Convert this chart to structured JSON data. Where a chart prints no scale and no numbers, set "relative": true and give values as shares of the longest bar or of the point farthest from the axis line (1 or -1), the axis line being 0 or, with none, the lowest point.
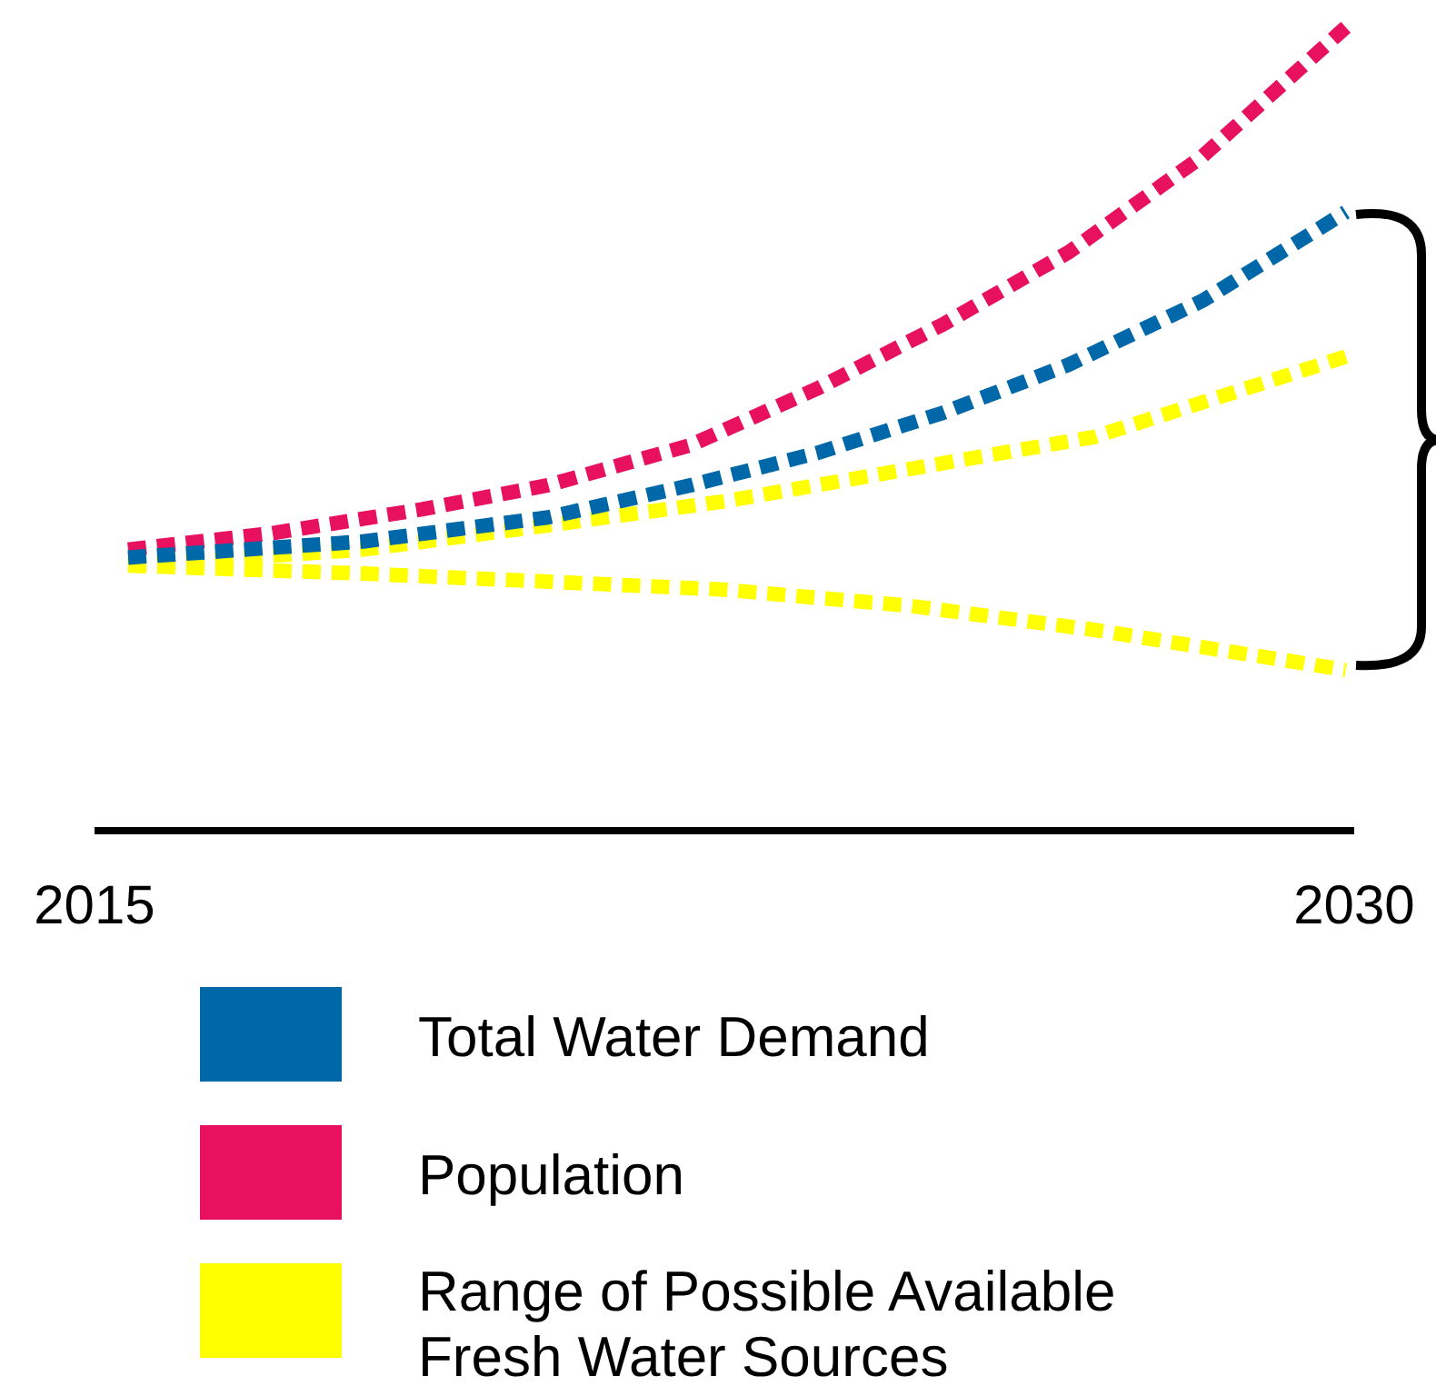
{
  "chart_data": {
    "type": "line",
    "relative": true,
    "xlim": [
      2015,
      2030
    ],
    "xticks": [
      2015,
      2030
    ],
    "line_style": "dotted",
    "marker": "none",
    "grid": false,
    "legend": "bottom",
    "series": [
      {
        "name": "Total Water Demand",
        "color": "#0068a8",
        "x": [
          2015.4,
          2018.2,
          2020.4,
          2022.1,
          2023.6,
          2025.1,
          2026.6,
          2028.2,
          2029.9
        ],
        "values": [
          0.34,
          0.36,
          0.39,
          0.43,
          0.47,
          0.52,
          0.58,
          0.66,
          0.77
        ]
      },
      {
        "name": "Population",
        "color": "#e8115f",
        "x": [
          2015.4,
          2017.1,
          2018.9,
          2020.4,
          2022.1,
          2023.6,
          2025.1,
          2026.6,
          2028.2,
          2029.9
        ],
        "values": [
          0.35,
          0.37,
          0.4,
          0.43,
          0.48,
          0.55,
          0.63,
          0.72,
          0.84,
          1.0
        ]
      },
      {
        "name": "Range of Possible Available Fresh Water Sources",
        "color": "#ffff00",
        "x": [
          2015.4,
          2018.2,
          2020.4,
          2022.5,
          2024.7,
          2026.9,
          2029.9
        ],
        "values": [
          0.33,
          0.35,
          0.38,
          0.41,
          0.45,
          0.49,
          0.59
        ]
      },
      {
        "color": "#ffff00",
        "x": [
          2015.4,
          2018.2,
          2020.4,
          2022.5,
          2024.7,
          2026.9,
          2029.9
        ],
        "values": [
          0.33,
          0.32,
          0.31,
          0.3,
          0.28,
          0.25,
          0.2
        ]
      }
    ]
  }
}
